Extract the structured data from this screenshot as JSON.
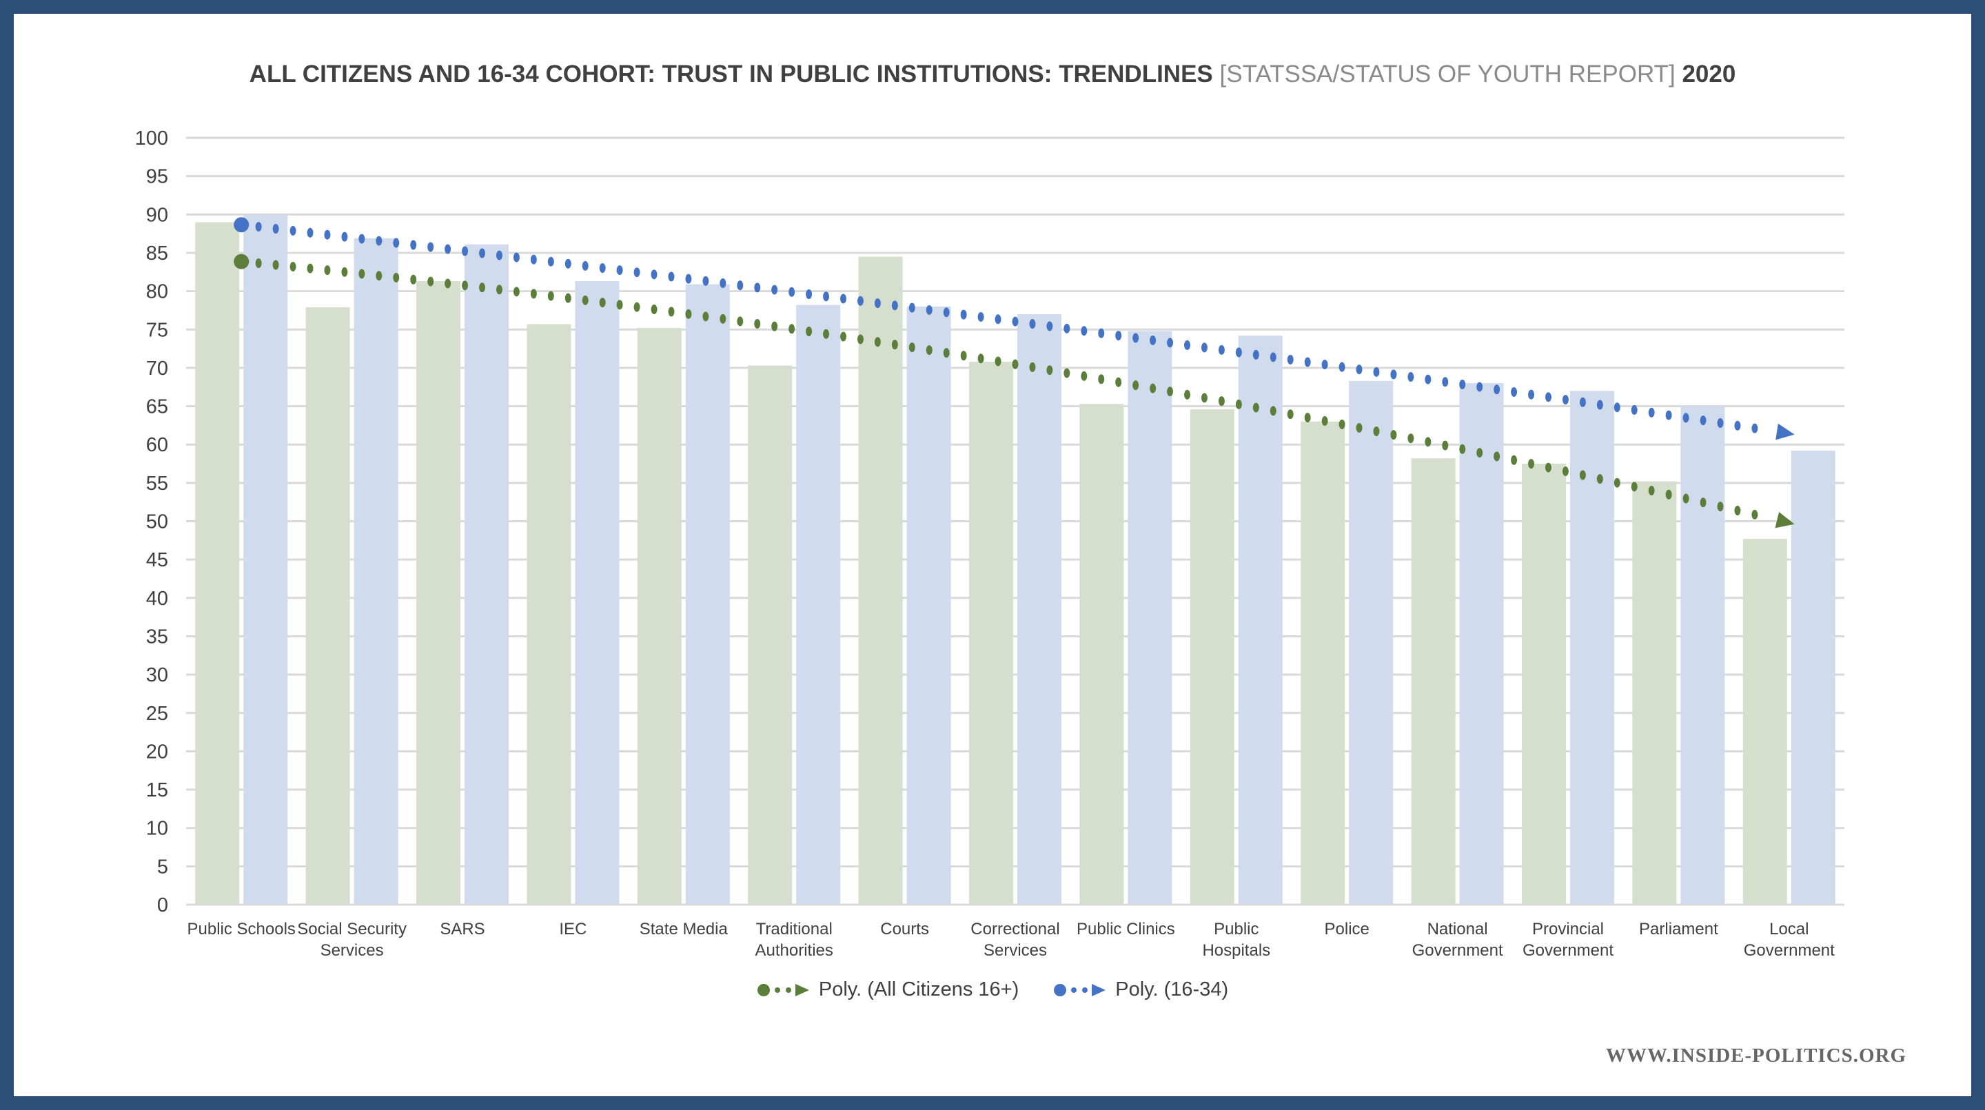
{
  "chart_data": {
    "type": "bar",
    "title": "ALL CITIZENS AND 16-34 COHORT: TRUST IN PUBLIC INSTITUTIONS: TRENDLINES",
    "title_source": "[STATSSA/STATUS OF YOUTH REPORT]",
    "title_year": "2020",
    "categories": [
      "Public Schools",
      "Social Security Services",
      "SARS",
      "IEC",
      "State Media",
      "Traditional Authorities",
      "Courts",
      "Correctional Services",
      "Public Clinics",
      "Public Hospitals",
      "Police",
      "National Government",
      "Provincial Government",
      "Parliament",
      "Local Government"
    ],
    "category_lines": [
      [
        "Public Schools"
      ],
      [
        "Social Security",
        "Services"
      ],
      [
        "SARS"
      ],
      [
        "IEC"
      ],
      [
        "State Media"
      ],
      [
        "Traditional",
        "Authorities"
      ],
      [
        "Courts"
      ],
      [
        "Correctional",
        "Services"
      ],
      [
        "Public Clinics"
      ],
      [
        "Public",
        "Hospitals"
      ],
      [
        "Police"
      ],
      [
        "National",
        "Government"
      ],
      [
        "Provincial",
        "Government"
      ],
      [
        "Parliament"
      ],
      [
        "Local",
        "Government"
      ]
    ],
    "series": [
      {
        "values": [
          89.0,
          77.9,
          81.3,
          75.7,
          75.2,
          70.3,
          84.5,
          70.8,
          65.3,
          64.6,
          63.0,
          58.2,
          57.5,
          55.2,
          47.7
        ],
        "color": "#d6dfcd"
      },
      {
        "values": [
          90.0,
          86.9,
          86.1,
          81.3,
          80.9,
          78.2,
          78.0,
          77.0,
          74.8,
          74.2,
          68.3,
          68.0,
          67.0,
          65.0,
          59.2
        ],
        "color": "#d1dbee"
      }
    ],
    "trendlines": [
      {
        "name": "Poly. (All Citizens 16+)",
        "type": "polynomial",
        "order": 2,
        "series_index": 0,
        "color": "#5b7f3a"
      },
      {
        "name": "Poly. (16-34)",
        "type": "polynomial",
        "order": 2,
        "series_index": 1,
        "color": "#4472c4"
      }
    ],
    "ylim": [
      0,
      100
    ],
    "yticks": [
      0,
      5,
      10,
      15,
      20,
      25,
      30,
      35,
      40,
      45,
      50,
      55,
      60,
      65,
      70,
      75,
      80,
      85,
      90,
      95,
      100
    ],
    "grid": true,
    "legend_position": "bottom"
  },
  "watermark": "WWW.INSIDE-POLITICS.ORG",
  "frame_color": "#2d4e78"
}
